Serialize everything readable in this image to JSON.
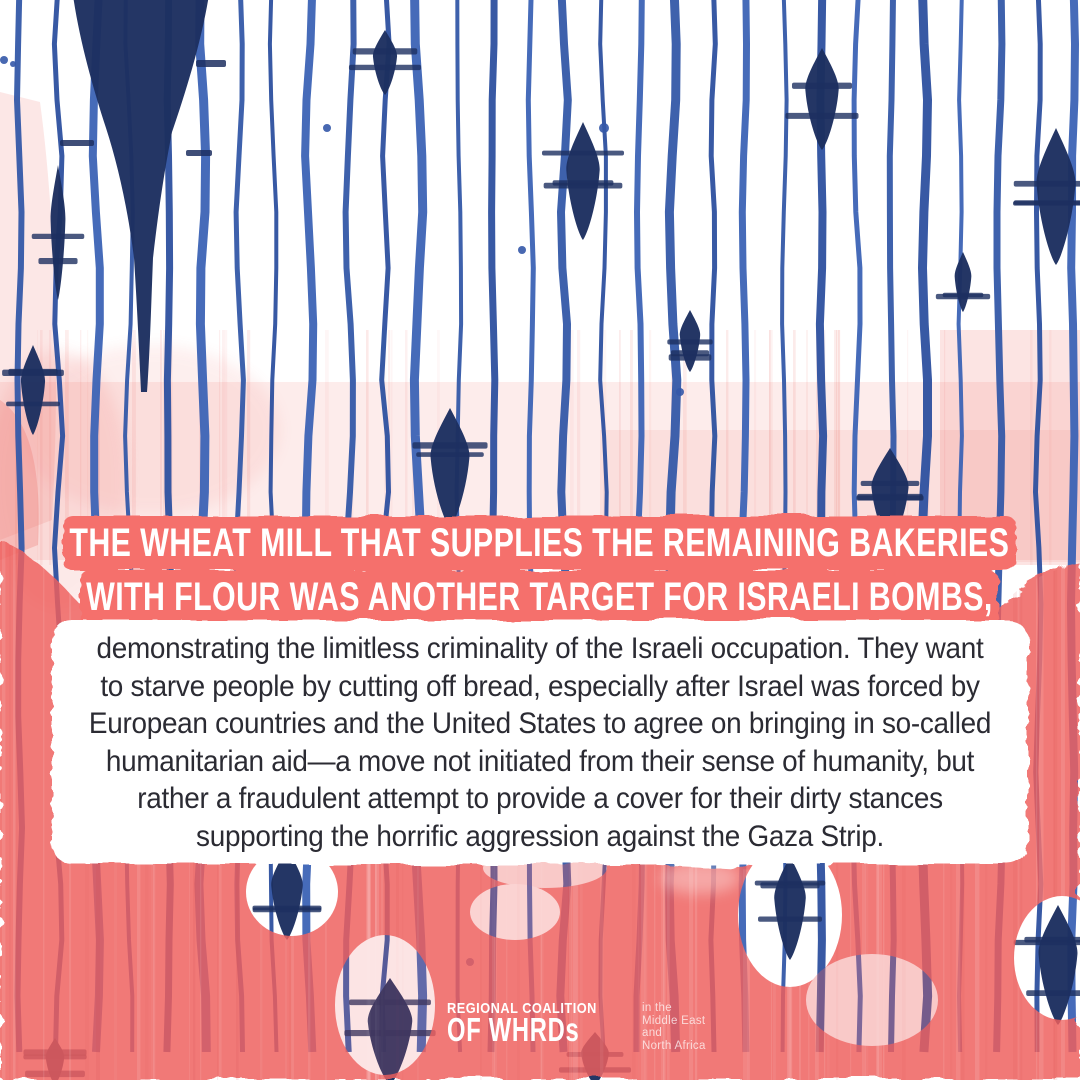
{
  "poster": {
    "headline": {
      "lines": [
        "THE WHEAT MILL THAT SUPPLIES THE REMAINING BAKERIES",
        "WITH FLOUR WAS ANOTHER TARGET FOR ISRAELI BOMBS,"
      ]
    },
    "body": {
      "lines": [
        "demonstrating the limitless criminality of the Israeli occupation. They want",
        "to starve people by cutting off bread, especially after Israel was forced by",
        "European countries and the United States to agree on bringing in so-called",
        "humanitarian aid—a move not initiated from their sense of humanity, but",
        "rather a fraudulent attempt to provide a cover for their dirty stances",
        "supporting the horrific aggression against the Gaza Strip."
      ]
    },
    "footer": {
      "org_name_line1": "REGIONAL COALITION",
      "org_name_line2": "OF WHRDs",
      "region_lines": [
        "in the",
        "Middle East",
        "and",
        "North Africa"
      ]
    },
    "colors": {
      "accent_salmon": "#f5706c",
      "wash_red": "#ef605d",
      "ink_blue": "#3458a8",
      "ink_navy": "#1d2f60",
      "body_text": "#2b2b33",
      "panel_white": "#ffffff"
    }
  }
}
